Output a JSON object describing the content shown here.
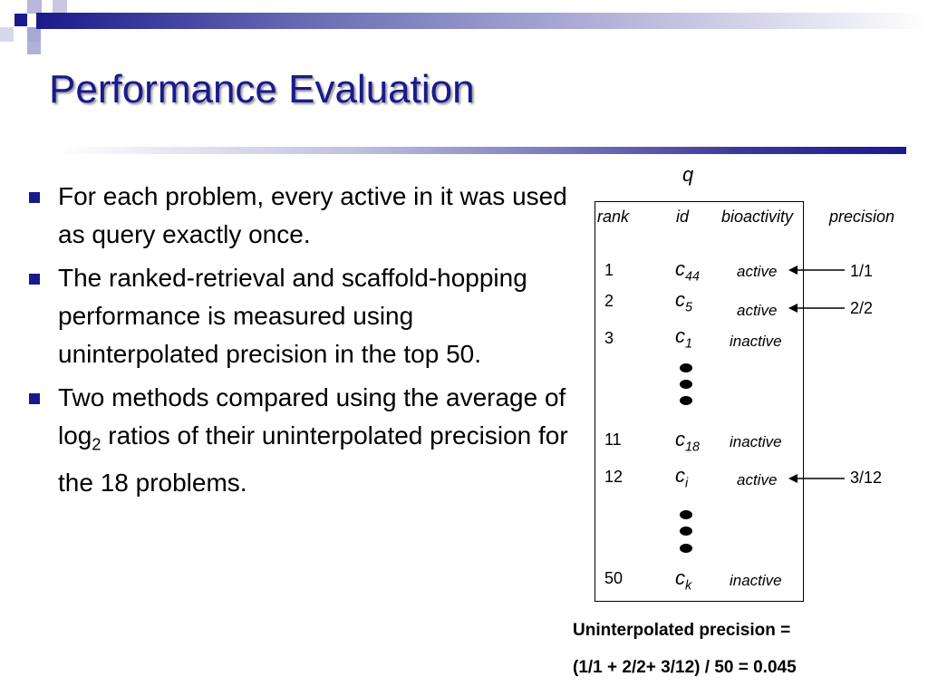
{
  "colors": {
    "accent": "#1a1a8c",
    "bullet": "#1a1a8c"
  },
  "slide": {
    "title": "Performance Evaluation"
  },
  "bullets": [
    {
      "text": "For each problem, every active in it was used as query exactly once."
    },
    {
      "text": "The ranked-retrieval and scaffold-hopping performance is measured using uninterpolated precision in the top 50."
    },
    {
      "text_before": "Two methods compared using the average of log",
      "subscript": "2",
      "text_after": " ratios of their uninterpolated precision for the 18 problems."
    }
  ],
  "diagram": {
    "query_label": "q",
    "headers": {
      "rank": "rank",
      "id": "id",
      "bioactivity": "bioactivity",
      "precision": "precision"
    },
    "rows": [
      {
        "rank": "1",
        "id": "c",
        "id_sub": "44",
        "bioactivity": "active",
        "precision": "1/1"
      },
      {
        "rank": "2",
        "id": "c",
        "id_sub": "5",
        "bioactivity": "active",
        "precision": "2/2"
      },
      {
        "rank": "3",
        "id": "c",
        "id_sub": "1",
        "bioactivity": "inactive",
        "precision": ""
      },
      {
        "rank": "11",
        "id": "c",
        "id_sub": "18",
        "bioactivity": "inactive",
        "precision": ""
      },
      {
        "rank": "12",
        "id": "c",
        "id_sub": "i",
        "bioactivity": "active",
        "precision": "3/12"
      },
      {
        "rank": "50",
        "id": "c",
        "id_sub": "k",
        "bioactivity": "inactive",
        "precision": ""
      }
    ],
    "formula_line1": "Uninterpolated precision =",
    "formula_line2": "(1/1 + 2/2+ 3/12) / 50 = 0.045"
  }
}
